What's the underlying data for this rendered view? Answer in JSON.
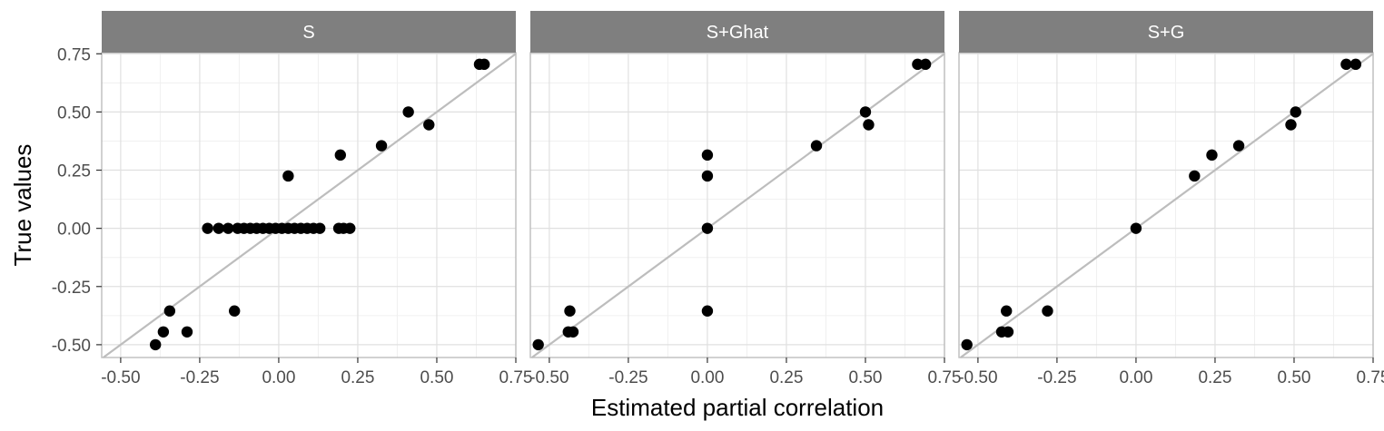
{
  "chart_data": {
    "type": "scatter",
    "xlabel": "Estimated partial correlation",
    "ylabel": "True values",
    "xlim": [
      -0.56,
      0.75
    ],
    "ylim": [
      -0.555,
      0.755
    ],
    "x_ticks": [
      -0.5,
      -0.25,
      0.0,
      0.25,
      0.5,
      0.75
    ],
    "x_tick_labels": [
      "-0.50",
      "-0.25",
      "0.00",
      "0.25",
      "0.50",
      "0.75"
    ],
    "y_ticks": [
      -0.5,
      -0.25,
      0.0,
      0.25,
      0.5,
      0.75
    ],
    "y_tick_labels": [
      "-0.50",
      "-0.25",
      "0.00",
      "0.25",
      "0.50",
      "0.75"
    ],
    "reference_line": "y = x",
    "grid": true,
    "colors": {
      "points": "#000000",
      "reference_line": "#bdbdbd",
      "strip_background": "#7f7f7f",
      "strip_text": "#ffffff",
      "grid_major": "#e0e0e0",
      "grid_minor": "#f0f0f0",
      "panel_border": "#bdbdbd",
      "tick_text": "#4d4d4d"
    },
    "panels": [
      {
        "title": "S",
        "points": [
          {
            "x": -0.39,
            "y": -0.5
          },
          {
            "x": -0.365,
            "y": -0.445
          },
          {
            "x": -0.29,
            "y": -0.445
          },
          {
            "x": -0.345,
            "y": -0.355
          },
          {
            "x": -0.14,
            "y": -0.355
          },
          {
            "x": -0.225,
            "y": 0.0
          },
          {
            "x": -0.19,
            "y": 0.0
          },
          {
            "x": -0.16,
            "y": 0.0
          },
          {
            "x": -0.13,
            "y": 0.0
          },
          {
            "x": -0.11,
            "y": 0.0
          },
          {
            "x": -0.09,
            "y": 0.0
          },
          {
            "x": -0.07,
            "y": 0.0
          },
          {
            "x": -0.05,
            "y": 0.0
          },
          {
            "x": -0.03,
            "y": 0.0
          },
          {
            "x": -0.01,
            "y": 0.0
          },
          {
            "x": 0.01,
            "y": 0.0
          },
          {
            "x": 0.03,
            "y": 0.0
          },
          {
            "x": 0.05,
            "y": 0.0
          },
          {
            "x": 0.07,
            "y": 0.0
          },
          {
            "x": 0.09,
            "y": 0.0
          },
          {
            "x": 0.11,
            "y": 0.0
          },
          {
            "x": 0.13,
            "y": 0.0
          },
          {
            "x": 0.19,
            "y": 0.0
          },
          {
            "x": 0.205,
            "y": 0.0
          },
          {
            "x": 0.225,
            "y": 0.0
          },
          {
            "x": 0.03,
            "y": 0.225
          },
          {
            "x": 0.195,
            "y": 0.315
          },
          {
            "x": 0.325,
            "y": 0.355
          },
          {
            "x": 0.41,
            "y": 0.5
          },
          {
            "x": 0.475,
            "y": 0.445
          },
          {
            "x": 0.635,
            "y": 0.705
          },
          {
            "x": 0.65,
            "y": 0.705
          }
        ]
      },
      {
        "title": "S+Ghat",
        "points": [
          {
            "x": -0.535,
            "y": -0.5
          },
          {
            "x": -0.44,
            "y": -0.445
          },
          {
            "x": -0.425,
            "y": -0.445
          },
          {
            "x": -0.435,
            "y": -0.355
          },
          {
            "x": 0.0,
            "y": -0.355
          },
          {
            "x": 0.0,
            "y": 0.0
          },
          {
            "x": 0.0,
            "y": 0.225
          },
          {
            "x": 0.0,
            "y": 0.315
          },
          {
            "x": 0.345,
            "y": 0.355
          },
          {
            "x": 0.5,
            "y": 0.5
          },
          {
            "x": 0.51,
            "y": 0.445
          },
          {
            "x": 0.665,
            "y": 0.705
          },
          {
            "x": 0.69,
            "y": 0.705
          }
        ]
      },
      {
        "title": "S+G",
        "points": [
          {
            "x": -0.535,
            "y": -0.5
          },
          {
            "x": -0.425,
            "y": -0.445
          },
          {
            "x": -0.405,
            "y": -0.445
          },
          {
            "x": -0.41,
            "y": -0.355
          },
          {
            "x": -0.28,
            "y": -0.355
          },
          {
            "x": 0.0,
            "y": 0.0
          },
          {
            "x": 0.185,
            "y": 0.225
          },
          {
            "x": 0.24,
            "y": 0.315
          },
          {
            "x": 0.325,
            "y": 0.355
          },
          {
            "x": 0.49,
            "y": 0.445
          },
          {
            "x": 0.505,
            "y": 0.5
          },
          {
            "x": 0.665,
            "y": 0.705
          },
          {
            "x": 0.695,
            "y": 0.705
          }
        ]
      }
    ]
  }
}
